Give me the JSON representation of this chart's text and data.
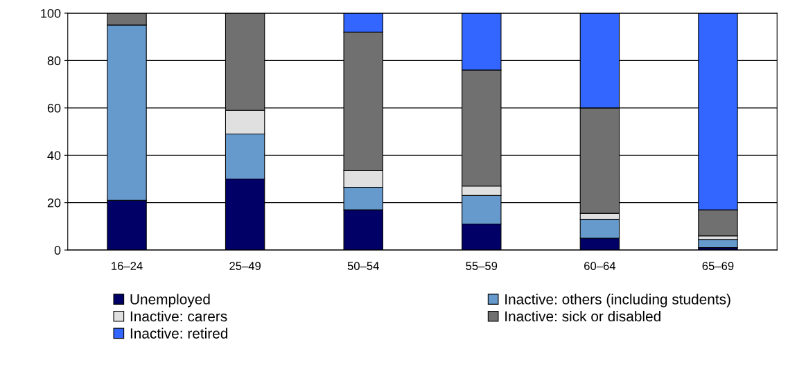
{
  "chart_data": {
    "type": "bar",
    "stacked": true,
    "categories": [
      "16–24",
      "25–49",
      "50–54",
      "55–59",
      "60–64",
      "65–69"
    ],
    "series": [
      {
        "name": "Unemployed",
        "color": "#000066",
        "values": [
          21,
          30,
          17,
          11,
          5,
          1
        ]
      },
      {
        "name": "Inactive: others (including students)",
        "color": "#6699cc",
        "values": [
          74,
          19,
          9.5,
          12,
          8,
          3.5
        ]
      },
      {
        "name": "Inactive: carers",
        "color": "#e0e0e0",
        "values": [
          0,
          10,
          7,
          4,
          2.5,
          1.5
        ]
      },
      {
        "name": "Inactive: sick or disabled",
        "color": "#707070",
        "values": [
          5,
          41,
          58.5,
          49,
          44.5,
          11
        ]
      },
      {
        "name": "Inactive: retired",
        "color": "#3366ff",
        "values": [
          0,
          0,
          8,
          24,
          40,
          83
        ]
      }
    ],
    "ylim": [
      0,
      100
    ],
    "yticks": [
      0,
      20,
      40,
      60,
      80,
      100
    ],
    "grid": "y",
    "legend": "bottom"
  }
}
